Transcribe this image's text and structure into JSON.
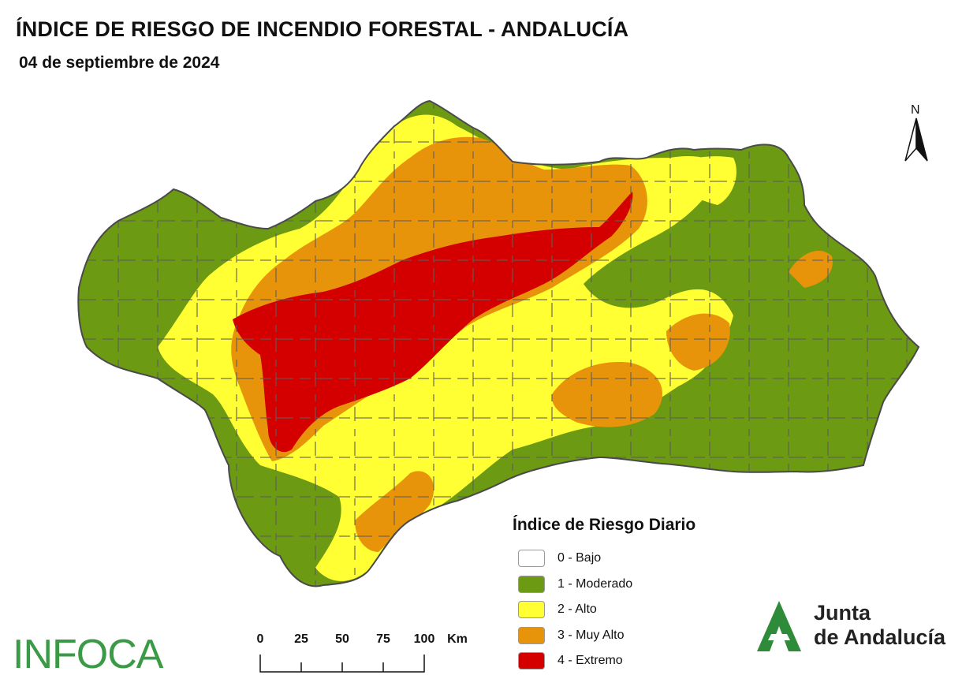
{
  "header": {
    "title": "ÍNDICE DE RIESGO DE INCENDIO FORESTAL - ANDALUCÍA",
    "date": "04 de septiembre de 2024"
  },
  "map": {
    "region": "Andalucía",
    "north_label": "N",
    "zones": [
      {
        "class": 1,
        "name": "west-moderado"
      },
      {
        "class": 2,
        "name": "central-alto"
      },
      {
        "class": 3,
        "name": "north-muy-alto"
      },
      {
        "class": 4,
        "name": "central-extremo"
      },
      {
        "class": 1,
        "name": "east-moderado"
      },
      {
        "class": 3,
        "name": "granada-muy-alto"
      }
    ]
  },
  "legend": {
    "title": "Índice de Riesgo Diario",
    "items": [
      {
        "label": "0 - Bajo",
        "color": "#ffffff"
      },
      {
        "label": "1 - Moderado",
        "color": "#6c9a12"
      },
      {
        "label": "2 - Alto",
        "color": "#ffff33"
      },
      {
        "label": "3 - Muy Alto",
        "color": "#e8940a"
      },
      {
        "label": "4 - Extremo",
        "color": "#d40000"
      }
    ]
  },
  "scale": {
    "ticks": [
      "0",
      "25",
      "50",
      "75",
      "100"
    ],
    "unit": "Km"
  },
  "branding": {
    "infoca": "INFOCA",
    "junta_line1": "Junta",
    "junta_line2": "de Andalucía",
    "infoca_color": "#3a9a45",
    "junta_color": "#2e8b3a"
  }
}
